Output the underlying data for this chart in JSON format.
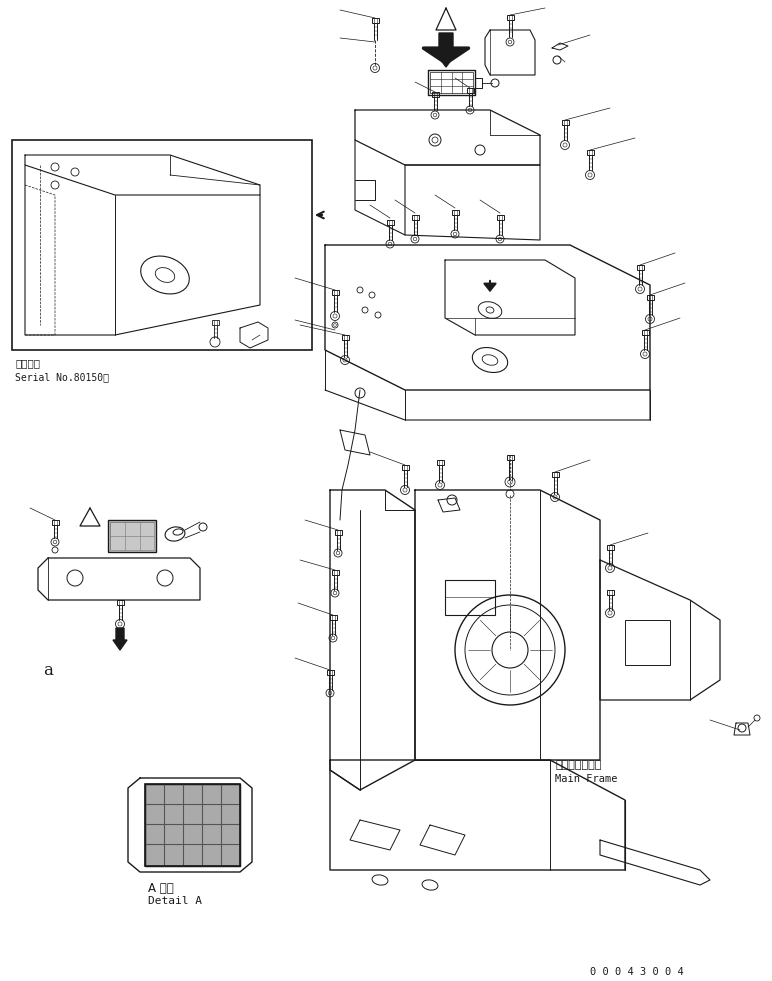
{
  "bg_color": "#ffffff",
  "line_color": "#1a1a1a",
  "serial_text_jp": "適用号機",
  "serial_text": "Serial No.80150〜",
  "main_frame_jp": "メインフレーム",
  "main_frame_en": "Main Frame",
  "detail_jp": "A 詳細",
  "detail_en": "Detail A",
  "label_a": "a",
  "doc_number": "0 0 0 4 3 0 0 4",
  "fig_width": 7.72,
  "fig_height": 9.81,
  "dpi": 100
}
